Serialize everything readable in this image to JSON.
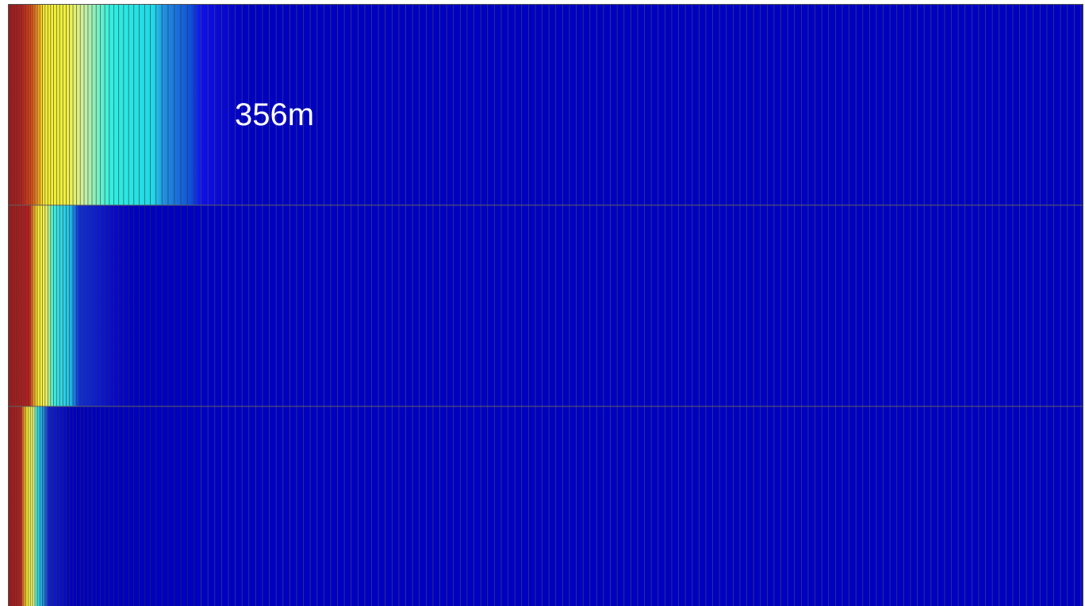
{
  "annotation": {
    "label": "356m"
  }
}
